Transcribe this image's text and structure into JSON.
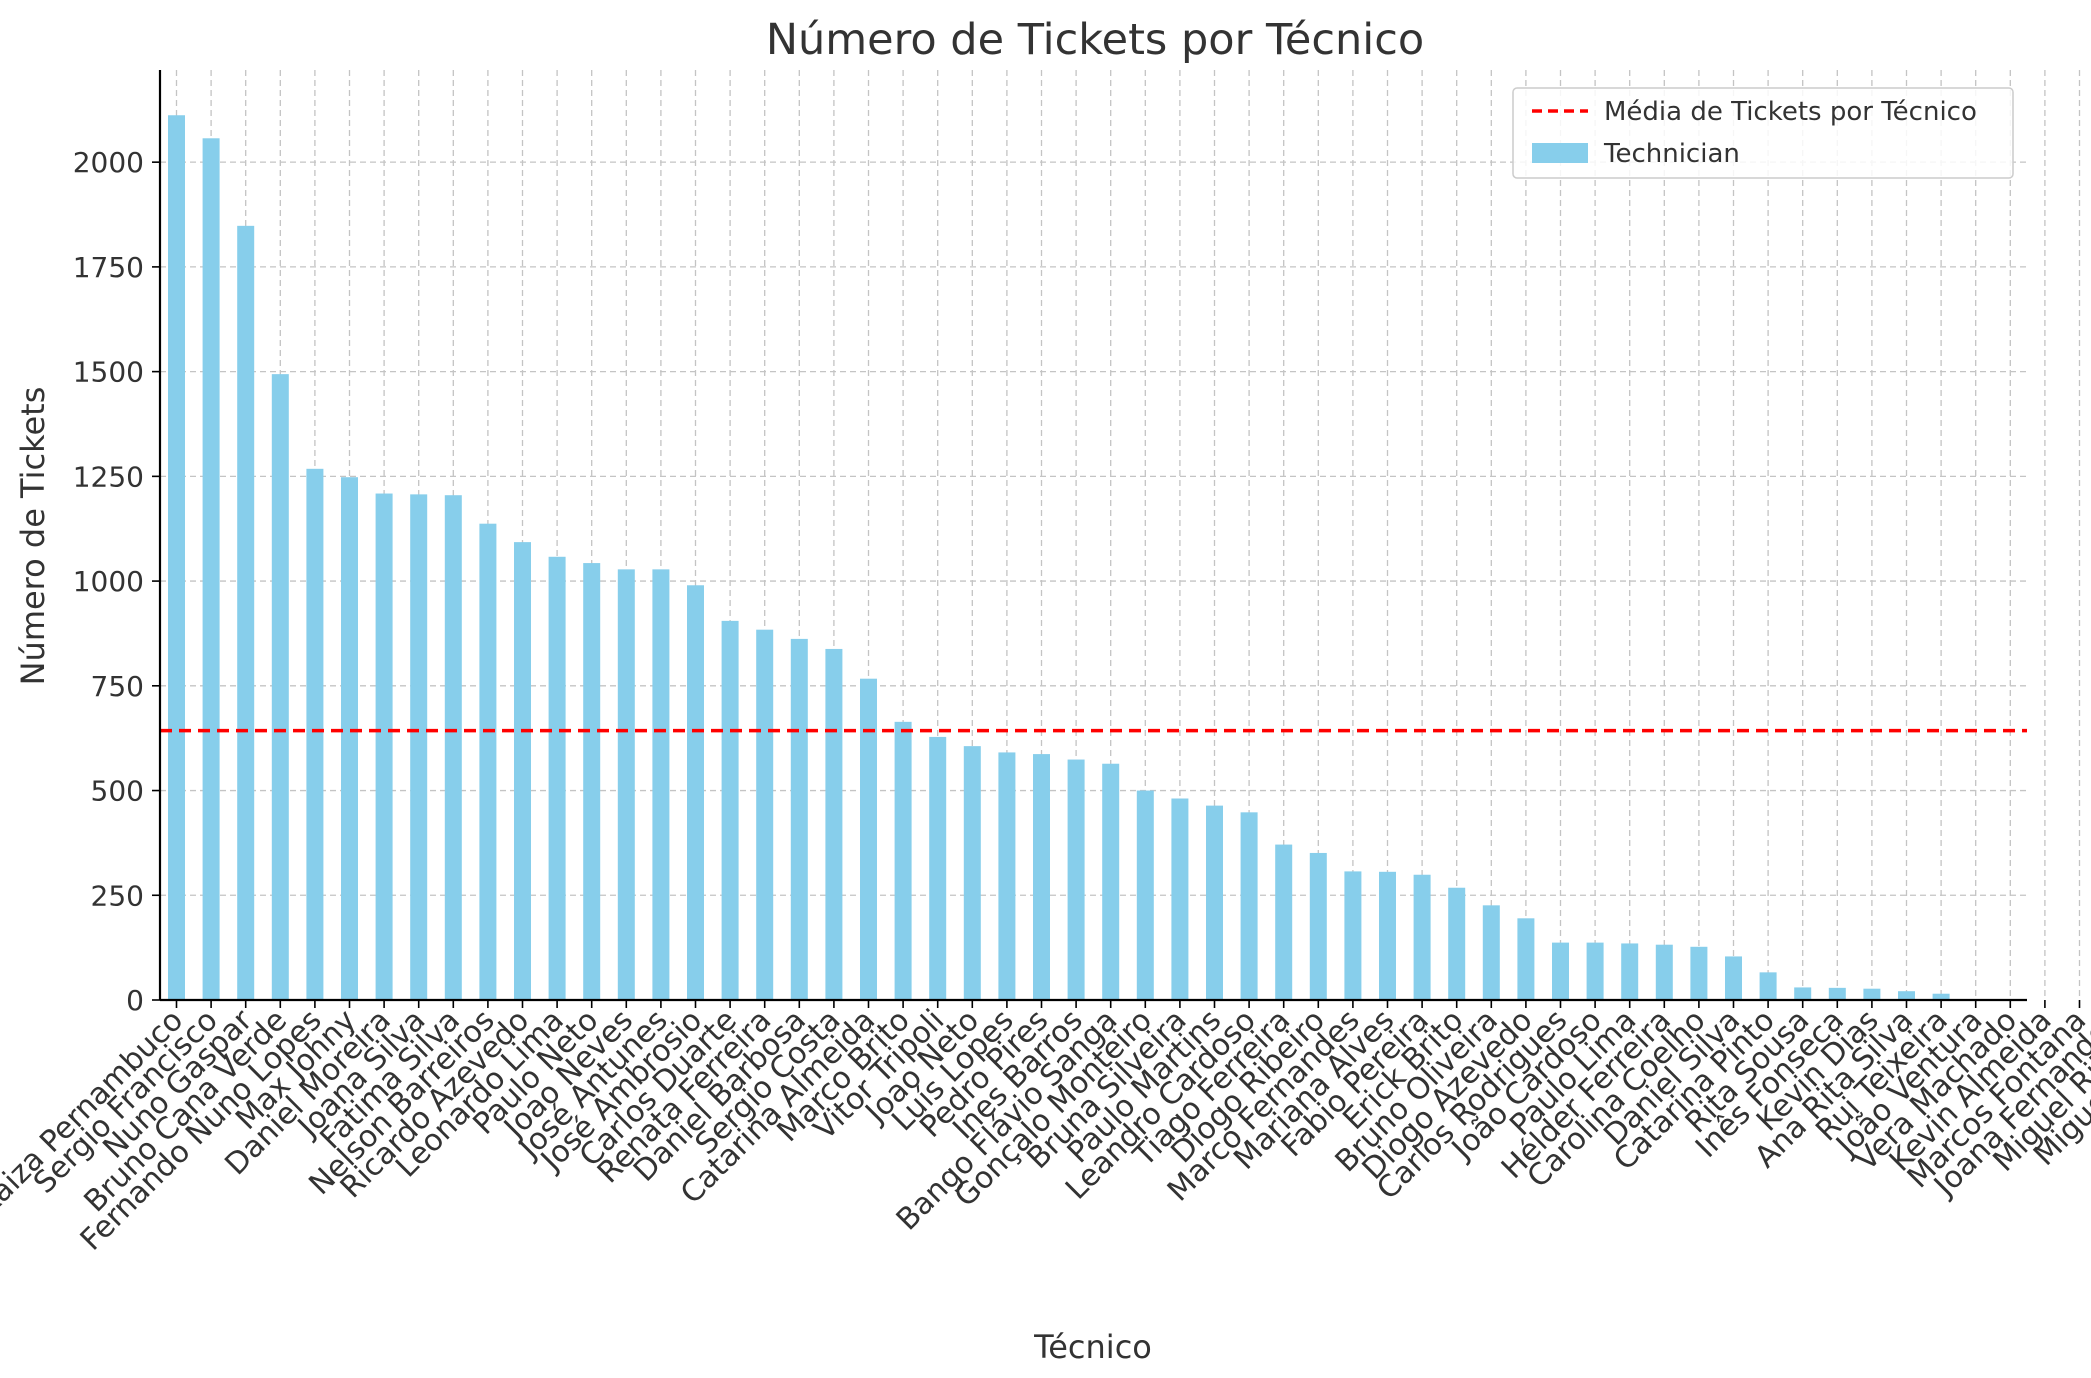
{
  "chart_data": {
    "type": "bar",
    "title": "Número de Tickets por Técnico",
    "xlabel": "Técnico",
    "ylabel": "Número de Tickets",
    "ylim": [
      0,
      2220
    ],
    "yticks": [
      0,
      250,
      500,
      750,
      1000,
      1250,
      1500,
      1750,
      2000
    ],
    "grid": true,
    "legend_position": "top-right",
    "series": [
      {
        "name": "Technician",
        "kind": "bar",
        "color": "#87CEEB"
      }
    ],
    "reference_line": {
      "name": "Média de Tickets por Técnico",
      "value": 643,
      "color": "#ff0000",
      "style": "dashed"
    },
    "categories": [
      "Raiza Pernambuco",
      "Sergio Francisco",
      "Nuno Gaspar",
      "Bruno Cana Verde",
      "Fernando Nuno Lopes",
      "Max Johny",
      "Daniel Moreira",
      "Joana Silva",
      "Fatima Silva",
      "Nelson Barreiros",
      "Ricardo Azevedo",
      "Leonardo Lima",
      "Paulo Neto",
      "Joao Neves",
      "José Antunes",
      "José Ambrosio",
      "Carlos Duarte",
      "Renata Ferreira",
      "Daniel Barbosa",
      "Sergio Costa",
      "Catarina Almeida",
      "Marco Brito",
      "Vitor Tripoli",
      "Joao Neto",
      "Luís Lopes",
      "Pedro Pires",
      "Ines Barros",
      "Bango Flávio Sanga",
      "Gonçalo Monteiro",
      "Bruna Silveira",
      "Paulo Martins",
      "Leandro Cardoso",
      "Tiago Ferreira",
      "Diogo Ribeiro",
      "Marco Fernandes",
      "Mariana Alves",
      "Fabio Pereira",
      "Erick Brito",
      "Bruno Oliveira",
      "Diogo Azevedo",
      "Carlos Rodrigues",
      "João Cardoso",
      "Paulo Lima",
      "Hélder Ferreira",
      "Carolina Coelho",
      "Daniel Silva",
      "Catarina Pinto",
      "Rita Sousa",
      "Inês Fonseca",
      "Kevin Dias",
      "Ana Rita Silva",
      "Rui Teixeira",
      "João Ventura",
      "Vera Machado",
      "Kevin Almeida",
      "Marcos Fontana",
      "Joana Fernandes",
      "Miguel Ribeiro",
      "Miguel Castro"
    ],
    "values": [
      2112,
      2057,
      1848,
      1494,
      1268,
      1248,
      1209,
      1207,
      1205,
      1137,
      1093,
      1058,
      1043,
      1028,
      1028,
      990,
      905,
      884,
      862,
      838,
      767,
      664,
      628,
      606,
      591,
      587,
      574,
      564,
      500,
      481,
      464,
      448,
      371,
      351,
      307,
      306,
      299,
      268,
      226,
      195,
      137,
      137,
      135,
      132,
      127,
      104,
      66,
      30,
      29,
      27,
      21,
      15,
      2,
      0,
      0,
      0,
      0,
      0,
      0
    ],
    "label_offsets": [
      0,
      0,
      0,
      0,
      0,
      0,
      0,
      0,
      0,
      0,
      0,
      0,
      0,
      0,
      0,
      0,
      0,
      0,
      0,
      0,
      0,
      0,
      0,
      0,
      0,
      0,
      0,
      0,
      0,
      0,
      0,
      0,
      0,
      0,
      0,
      0,
      0,
      0,
      0,
      0,
      0,
      0,
      0,
      0,
      0,
      0,
      0,
      0,
      0,
      0,
      0,
      0,
      0,
      0,
      0,
      0,
      0,
      0,
      0
    ]
  }
}
